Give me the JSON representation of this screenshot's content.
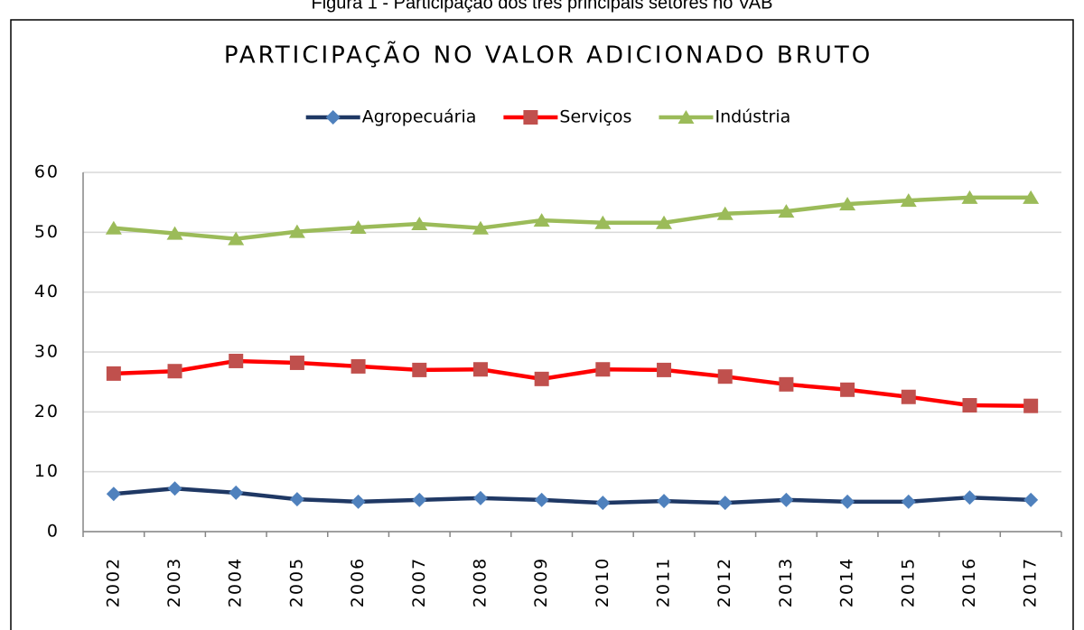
{
  "chart_data": {
    "type": "line",
    "caption": "Figura 1 - Participação dos três principais setores no VAB",
    "title": "PARTICIPAÇÃO NO VALOR ADICIONADO BRUTO",
    "categories": [
      "2002",
      "2003",
      "2004",
      "2005",
      "2006",
      "2007",
      "2008",
      "2009",
      "2010",
      "2011",
      "2012",
      "2013",
      "2014",
      "2015",
      "2016",
      "2017"
    ],
    "series": [
      {
        "name": "Agropecuária",
        "color": "#1f3864",
        "marker_color": "#4f81bd",
        "marker": "diamond",
        "values": [
          6.3,
          7.2,
          6.5,
          5.4,
          5.0,
          5.3,
          5.6,
          5.3,
          4.8,
          5.1,
          4.8,
          5.3,
          5.0,
          5.0,
          5.7,
          5.3
        ]
      },
      {
        "name": "Serviços",
        "color": "#ff0000",
        "marker_color": "#c0504d",
        "marker": "square",
        "values": [
          26.4,
          26.8,
          28.5,
          28.2,
          27.6,
          27.0,
          27.1,
          25.5,
          27.1,
          27.0,
          25.9,
          24.6,
          23.7,
          22.5,
          21.1,
          21.0
        ]
      },
      {
        "name": "Indústria",
        "color": "#9bbb59",
        "marker_color": "#9bbb59",
        "marker": "triangle",
        "values": [
          50.7,
          49.8,
          48.9,
          50.1,
          50.8,
          51.4,
          50.7,
          52.0,
          51.6,
          51.6,
          53.1,
          53.5,
          54.7,
          55.3,
          55.8,
          55.8
        ]
      }
    ],
    "ylim": [
      0,
      60
    ],
    "yticks": [
      0,
      10,
      20,
      30,
      40,
      50,
      60
    ],
    "grid": true,
    "legend": "top"
  }
}
